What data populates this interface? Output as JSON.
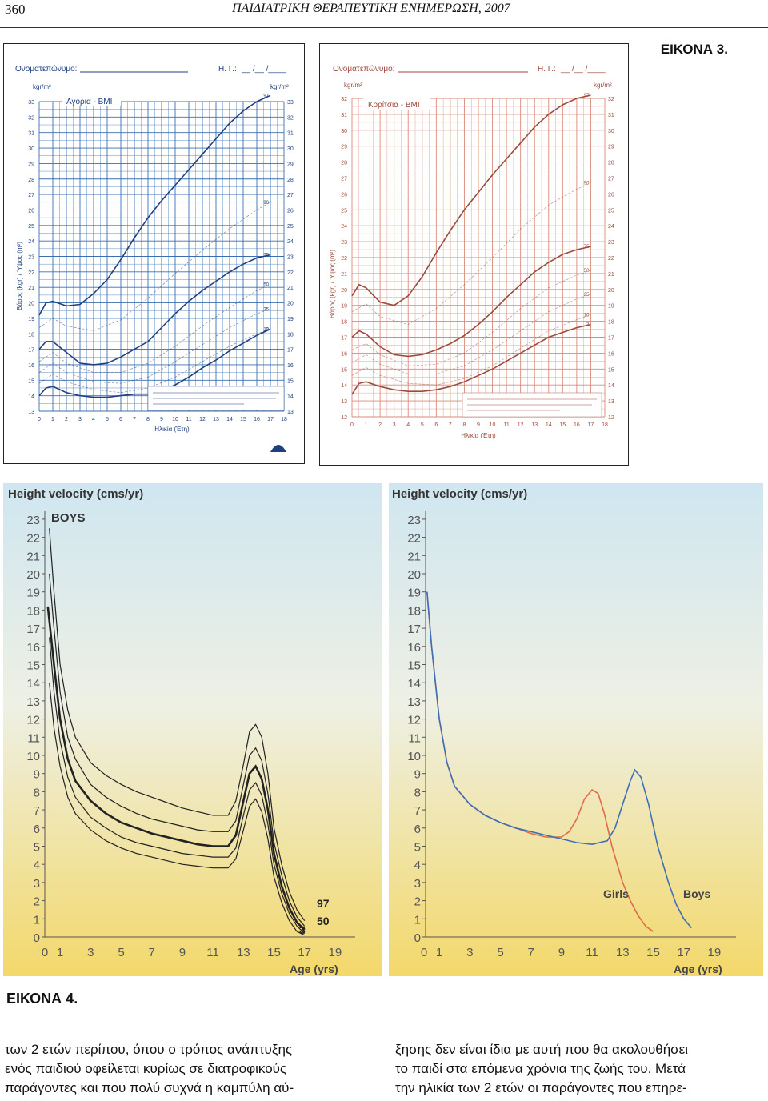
{
  "header": {
    "page_number": "360",
    "journal": "ΠΑΙΔΙΑΤΡΙΚΗ ΘΕΡΑΠΕΥΤΙΚΗ ΕΝΗΜΕΡΩΣΗ, 2007"
  },
  "figure3_label": "ΕΙΚΟΝΑ 3.",
  "figure4_label": "ΕΙΚΟΝΑ 4.",
  "bmi_boys": {
    "name_field": "Ονοματεπώνυμο:",
    "hg_field": "Η. Γ.:",
    "date_blank": "__ /__ /____",
    "unit": "kgr/m²",
    "title": "Αγόρια - BMI",
    "ylabel": "Βάρος (kgr) / Ύψος (m²)",
    "xlabel": "Ηλικία (Έτη)",
    "y_ticks": [
      "13",
      "14",
      "15",
      "16",
      "17",
      "18",
      "19",
      "20",
      "21",
      "22",
      "23",
      "24",
      "25",
      "26",
      "27",
      "28",
      "29",
      "30",
      "31",
      "32",
      "33"
    ],
    "x_ticks": [
      "0",
      "1",
      "2",
      "3",
      "4",
      "5",
      "6",
      "7",
      "8",
      "9",
      "10",
      "11",
      "12",
      "13",
      "14",
      "15",
      "16",
      "17",
      "18"
    ],
    "percentile_labels": [
      "97",
      "90",
      "75",
      "50",
      "25",
      "10",
      "3"
    ],
    "line_color": "#1f3f80",
    "grid_color": "#3b6fb0"
  },
  "bmi_girls": {
    "name_field": "Ονοματεπώνυμο:",
    "hg_field": "Η. Γ.:",
    "date_blank": "__ /__ /____",
    "unit": "kgr/m²",
    "title": "Κορίτσια - BMI",
    "ylabel": "Βάρος (kgr) / Ύψος (m²)",
    "xlabel": "Ηλικία (Έτη)",
    "y_ticks": [
      "12",
      "13",
      "14",
      "15",
      "16",
      "17",
      "18",
      "19",
      "20",
      "21",
      "22",
      "23",
      "24",
      "25",
      "26",
      "27",
      "28",
      "29",
      "30",
      "31",
      "32"
    ],
    "x_ticks": [
      "0",
      "1",
      "2",
      "3",
      "4",
      "5",
      "6",
      "7",
      "8",
      "9",
      "10",
      "11",
      "12",
      "13",
      "14",
      "15",
      "16",
      "17",
      "18"
    ],
    "percentile_labels": [
      "97",
      "90",
      "75",
      "50",
      "25",
      "10",
      "3"
    ],
    "line_color": "#9c4a3c",
    "grid_color": "#d98a7a"
  },
  "hv_boys": {
    "title": "Height velocity (cms/yr)",
    "badge": "BOYS",
    "xlabel": "Age (yrs)",
    "y_ticks": [
      "0",
      "1",
      "2",
      "3",
      "4",
      "5",
      "6",
      "7",
      "8",
      "9",
      "10",
      "11",
      "12",
      "13",
      "14",
      "15",
      "16",
      "17",
      "18",
      "19",
      "20",
      "21",
      "22",
      "23"
    ],
    "x_ticks": [
      "0",
      "1",
      "3",
      "5",
      "7",
      "9",
      "11",
      "13",
      "15",
      "17",
      "19"
    ],
    "curve_labels": [
      "97",
      "50",
      "3"
    ],
    "line_color": "#222222"
  },
  "hv_girls": {
    "title": "Height velocity (cms/yr)",
    "xlabel": "Age (yrs)",
    "y_ticks": [
      "0",
      "1",
      "2",
      "3",
      "4",
      "5",
      "6",
      "7",
      "8",
      "9",
      "10",
      "11",
      "12",
      "13",
      "14",
      "15",
      "16",
      "17",
      "18",
      "19",
      "20",
      "21",
      "22",
      "23"
    ],
    "x_ticks": [
      "0",
      "1",
      "3",
      "5",
      "7",
      "9",
      "11",
      "13",
      "15",
      "17",
      "19"
    ],
    "legend": {
      "girls": "Girls",
      "boys": "Boys"
    },
    "girls_color": "#e26a4a",
    "boys_color": "#3d6fb8"
  },
  "body": {
    "left_lines": [
      "των 2 ετών περίπου, όπου ο τρόπος ανάπτυξης",
      "ενός παιδιού οφείλεται κυρίως σε διατροφικούς",
      "παράγοντες και που πολύ συχνά η καμπύλη αύ-"
    ],
    "right_lines": [
      "ξησης δεν είναι ίδια με αυτή που θα ακολουθήσει",
      "το παιδί στα επόμενα χρόνια της ζωής του. Μετά",
      "την ηλικία των 2 ετών οι παράγοντες που επηρε-"
    ]
  }
}
